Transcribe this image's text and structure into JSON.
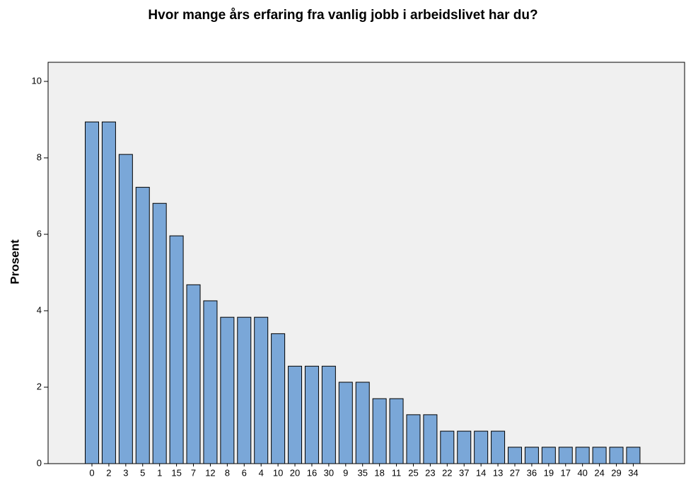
{
  "chart_data": {
    "type": "bar",
    "title": "Hvor mange års erfaring fra vanlig jobb i arbeidslivet har du?",
    "y_label": "Prosent",
    "categories": [
      "0",
      "2",
      "3",
      "5",
      "1",
      "15",
      "7",
      "12",
      "8",
      "6",
      "4",
      "10",
      "20",
      "16",
      "30",
      "9",
      "35",
      "18",
      "11",
      "25",
      "23",
      "22",
      "37",
      "14",
      "13",
      "27",
      "36",
      "19",
      "17",
      "40",
      "24",
      "29",
      "34"
    ],
    "values": [
      8.94,
      8.94,
      8.09,
      7.23,
      6.81,
      5.96,
      4.68,
      4.26,
      3.83,
      3.83,
      3.83,
      3.4,
      2.55,
      2.55,
      2.55,
      2.13,
      2.13,
      1.7,
      1.7,
      1.28,
      1.28,
      0.85,
      0.85,
      0.85,
      0.85,
      0.43,
      0.43,
      0.43,
      0.43,
      0.43,
      0.43,
      0.43,
      0.43
    ],
    "color": "#7aa7d8",
    "ylim": [
      0,
      10.5
    ],
    "yticks": [
      0,
      2,
      4,
      6,
      8,
      10
    ],
    "grid": false
  }
}
